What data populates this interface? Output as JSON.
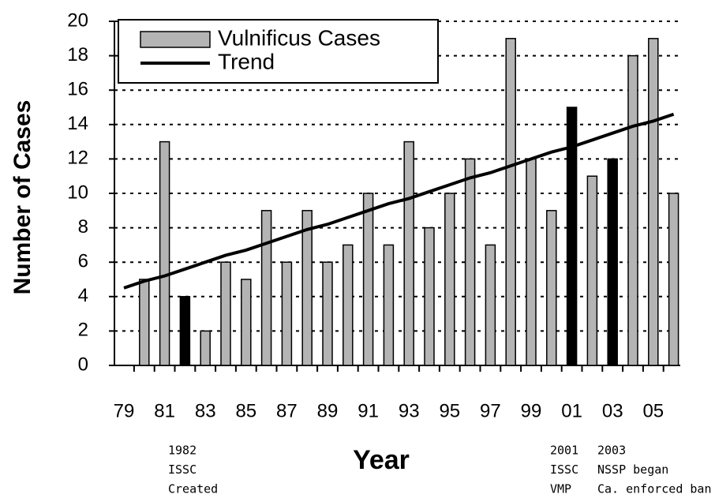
{
  "chart_data": {
    "type": "bar",
    "x_label": "Year",
    "y_label": "Number of Cases",
    "categories": [
      "79",
      null,
      "81",
      null,
      "83",
      null,
      "85",
      null,
      "87",
      null,
      "89",
      null,
      "91",
      null,
      "93",
      null,
      "95",
      null,
      "97",
      null,
      "99",
      null,
      "01",
      null,
      "03",
      null,
      "05",
      null
    ],
    "series": [
      {
        "name": "Vulnificus Cases",
        "type": "bar",
        "color": "#b4b4b4",
        "colors": [
          null,
          "#b4b4b4",
          "#b4b4b4",
          "#000000",
          "#b4b4b4",
          "#b4b4b4",
          "#b4b4b4",
          "#b4b4b4",
          "#b4b4b4",
          "#b4b4b4",
          "#b4b4b4",
          "#b4b4b4",
          "#b4b4b4",
          "#b4b4b4",
          "#b4b4b4",
          "#b4b4b4",
          "#b4b4b4",
          "#b4b4b4",
          "#b4b4b4",
          "#b4b4b4",
          "#b4b4b4",
          "#b4b4b4",
          "#000000",
          "#b4b4b4",
          "#000000",
          "#b4b4b4",
          "#b4b4b4",
          "#b4b4b4"
        ],
        "values": [
          null,
          5,
          13,
          4,
          2,
          6,
          5,
          9,
          6,
          9,
          6,
          7,
          10,
          7,
          13,
          8,
          10,
          12,
          7,
          19,
          12,
          9,
          15,
          11,
          12,
          18,
          19,
          10
        ]
      },
      {
        "name": "Trend",
        "type": "line",
        "color": "#000000",
        "values": [
          4.5,
          4.9,
          5.2,
          5.6,
          6.0,
          6.4,
          6.7,
          7.1,
          7.5,
          7.9,
          8.2,
          8.6,
          9.0,
          9.4,
          9.7,
          10.1,
          10.5,
          10.9,
          11.2,
          11.6,
          12.0,
          12.4,
          12.7,
          13.1,
          13.5,
          13.9,
          14.2,
          14.6
        ]
      }
    ],
    "ylim": [
      0,
      20
    ],
    "yticks": [
      0,
      2,
      4,
      6,
      8,
      10,
      12,
      14,
      16,
      18,
      20
    ],
    "grid": true,
    "legend": "top-left",
    "annotations": [
      [
        "1982",
        "ISSC",
        "Created"
      ],
      [
        "2001",
        "ISSC",
        "VMP"
      ],
      [
        "2003",
        "NSSP began",
        "Ca. enforced ban"
      ]
    ]
  }
}
